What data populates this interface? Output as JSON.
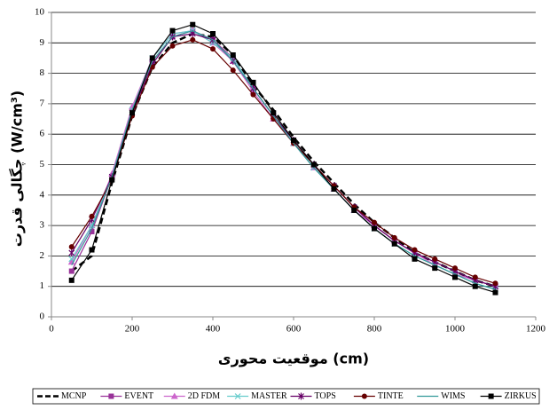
{
  "chart_data": {
    "type": "line",
    "xlabel": "موقعیت محوری (cm)",
    "ylabel": "چگالی قدرت (W/cm³)",
    "x": [
      50,
      100,
      150,
      200,
      250,
      300,
      350,
      400,
      450,
      500,
      550,
      600,
      650,
      700,
      750,
      800,
      850,
      900,
      950,
      1000,
      1050,
      1100
    ],
    "xlim": [
      0,
      1200
    ],
    "xticks": [
      0,
      200,
      400,
      600,
      800,
      1000,
      1200
    ],
    "ylim": [
      0,
      10
    ],
    "yticks": [
      0,
      1,
      2,
      3,
      4,
      5,
      6,
      7,
      8,
      9,
      10
    ],
    "grid": true,
    "legend": "bottom",
    "series": [
      {
        "name": "MCNP",
        "color": "#000000",
        "dash": true,
        "marker": "none",
        "values": [
          1.5,
          2.0,
          4.4,
          6.6,
          8.2,
          9.0,
          9.3,
          9.2,
          8.6,
          7.6,
          6.8,
          5.9,
          5.1,
          4.4,
          3.7,
          3.1,
          2.6,
          2.1,
          1.8,
          1.5,
          1.2,
          1.0
        ]
      },
      {
        "name": "EVENT",
        "color": "#993399",
        "dash": false,
        "marker": "square",
        "values": [
          1.5,
          2.8,
          4.6,
          6.8,
          8.4,
          9.2,
          9.4,
          9.1,
          8.5,
          7.5,
          6.6,
          5.8,
          5.0,
          4.3,
          3.6,
          3.0,
          2.5,
          2.1,
          1.8,
          1.5,
          1.2,
          1.0
        ]
      },
      {
        "name": "2D FDM",
        "color": "#cc66cc",
        "dash": false,
        "marker": "triangle",
        "values": [
          1.8,
          3.0,
          4.7,
          6.9,
          8.5,
          9.3,
          9.4,
          9.0,
          8.4,
          7.4,
          6.5,
          5.7,
          4.9,
          4.2,
          3.5,
          3.0,
          2.5,
          2.1,
          1.7,
          1.4,
          1.2,
          1.0
        ]
      },
      {
        "name": "MASTER",
        "color": "#66cccc",
        "dash": false,
        "marker": "cross",
        "values": [
          1.9,
          3.0,
          4.6,
          6.8,
          8.5,
          9.3,
          9.4,
          9.0,
          8.5,
          7.5,
          6.6,
          5.7,
          4.9,
          4.2,
          3.5,
          2.9,
          2.4,
          2.0,
          1.7,
          1.4,
          1.1,
          0.9
        ]
      },
      {
        "name": "TOPS",
        "color": "#660066",
        "dash": false,
        "marker": "star",
        "values": [
          2.1,
          3.2,
          4.6,
          6.7,
          8.3,
          9.2,
          9.3,
          9.1,
          8.4,
          7.5,
          6.6,
          5.8,
          5.0,
          4.3,
          3.6,
          3.0,
          2.5,
          2.1,
          1.8,
          1.5,
          1.2,
          1.0
        ]
      },
      {
        "name": "TINTE",
        "color": "#660000",
        "dash": false,
        "marker": "circle",
        "values": [
          2.3,
          3.3,
          4.5,
          6.6,
          8.2,
          8.9,
          9.1,
          8.8,
          8.1,
          7.3,
          6.5,
          5.7,
          5.0,
          4.3,
          3.6,
          3.1,
          2.6,
          2.2,
          1.9,
          1.6,
          1.3,
          1.1
        ]
      },
      {
        "name": "WIMS",
        "color": "#339999",
        "dash": false,
        "marker": "none",
        "values": [
          1.7,
          2.9,
          4.6,
          6.8,
          8.4,
          9.2,
          9.4,
          9.1,
          8.4,
          7.5,
          6.6,
          5.7,
          4.9,
          4.2,
          3.5,
          2.9,
          2.4,
          2.0,
          1.7,
          1.4,
          1.1,
          0.9
        ]
      },
      {
        "name": "ZIRKUS",
        "color": "#000000",
        "dash": false,
        "marker": "square",
        "values": [
          1.2,
          2.2,
          4.5,
          6.7,
          8.5,
          9.4,
          9.6,
          9.3,
          8.6,
          7.7,
          6.7,
          5.8,
          5.0,
          4.2,
          3.5,
          2.9,
          2.4,
          1.9,
          1.6,
          1.3,
          1.0,
          0.8
        ]
      }
    ]
  }
}
